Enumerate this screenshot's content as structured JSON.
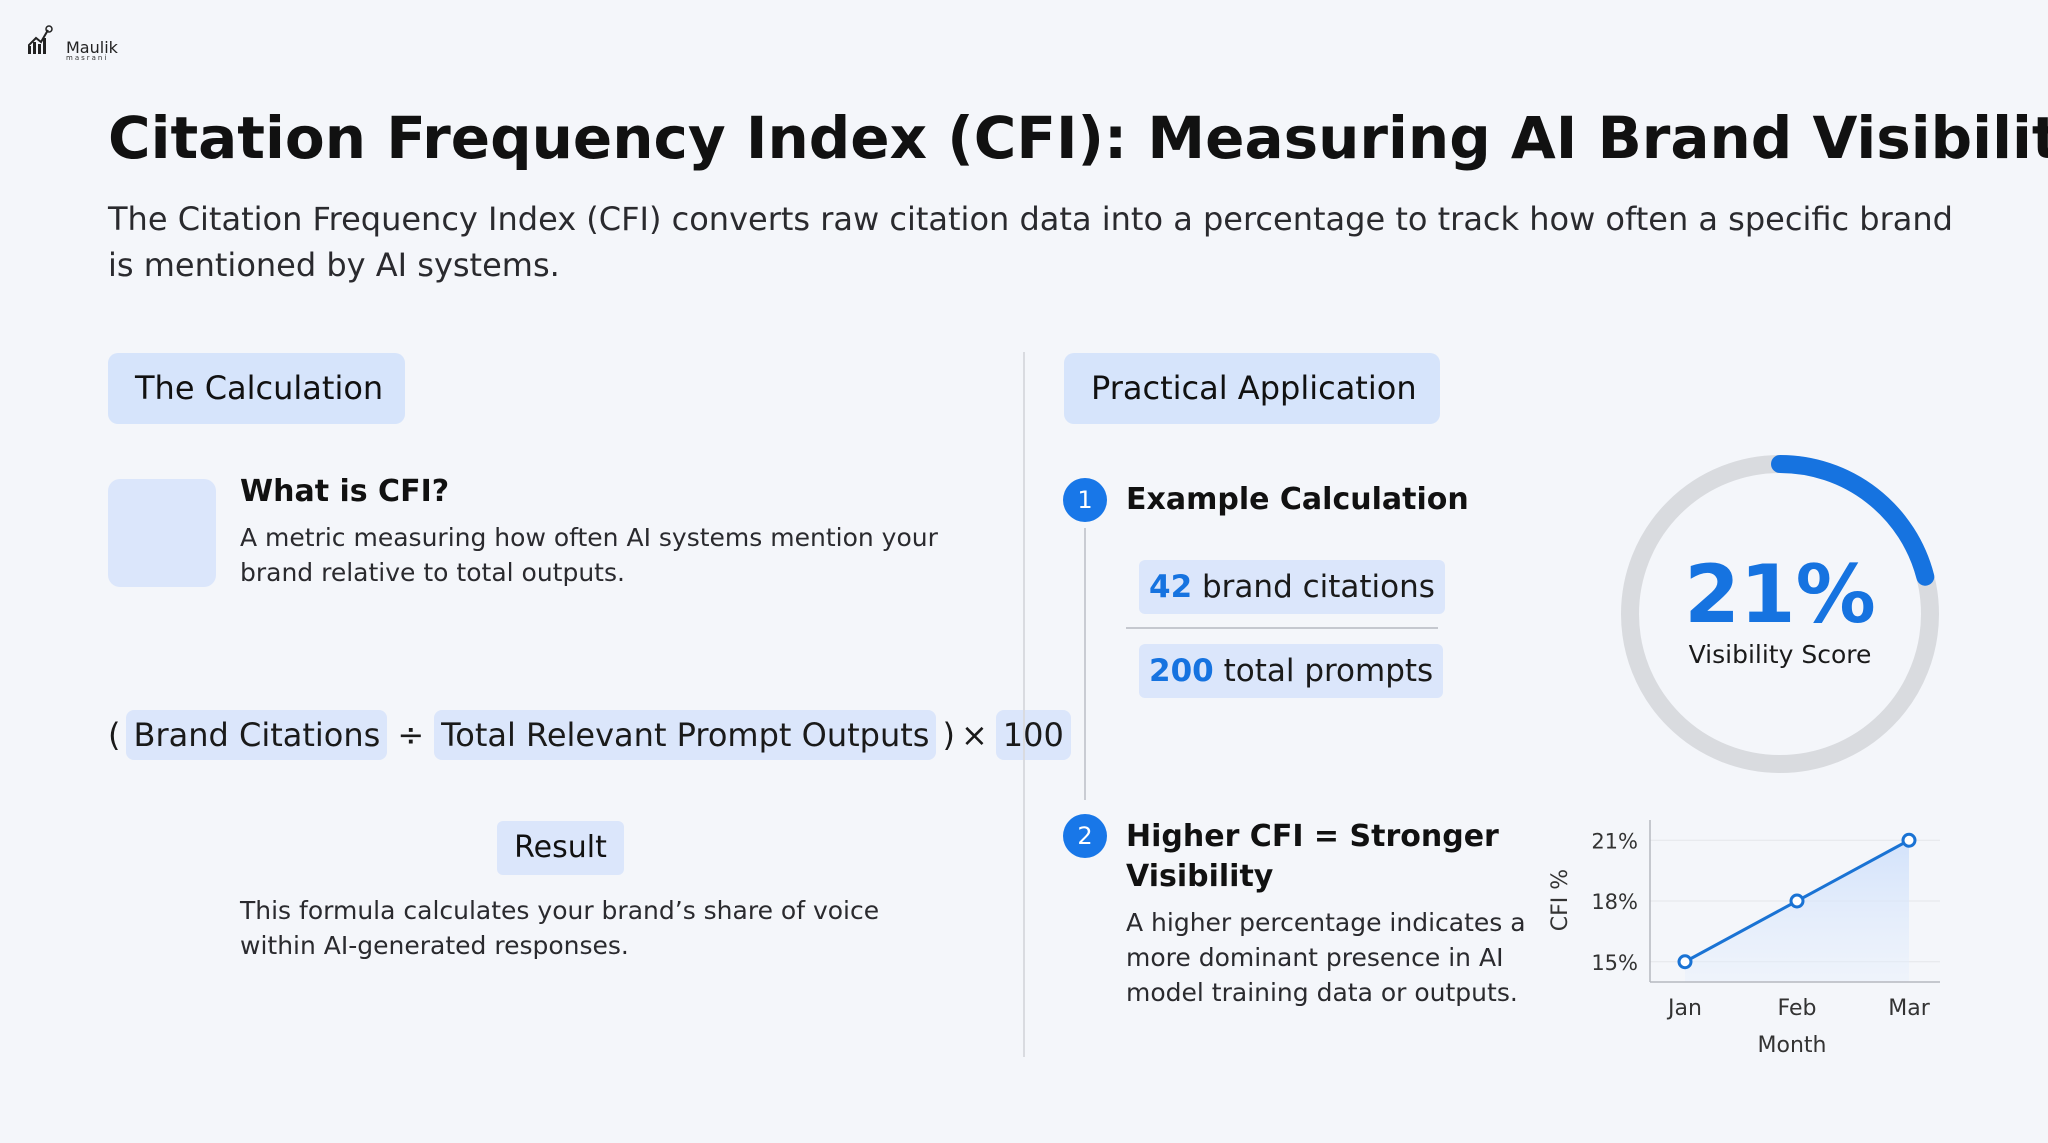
{
  "logo": {
    "name": "Maulik",
    "sub": "masrani"
  },
  "title": "Citation Frequency Index (CFI): Measuring AI Brand Visibility",
  "subtitle": "The Citation Frequency Index (CFI) converts raw citation data into a percentage to track how often a specific brand is mentioned by AI systems.",
  "calculation": {
    "section_label": "The Calculation",
    "what_heading": "What is CFI?",
    "what_desc": "A metric measuring how often AI systems mention your brand relative to total outputs.",
    "formula": {
      "open_paren": "(",
      "term1": "Brand Citations",
      "divide": "÷",
      "term2": "Total Relevant Prompt Outputs",
      "close_paren": ")",
      "times": "×",
      "term3": "100"
    },
    "result_label": "Result",
    "result_desc": "This formula calculates your brand’s share of voice within AI-generated responses."
  },
  "application": {
    "section_label": "Practical Application",
    "step1_number": "1",
    "step1_heading": "Example Calculation",
    "citations_value": "42",
    "citations_label": "brand citations",
    "prompts_value": "200",
    "prompts_label": "total prompts",
    "step2_number": "2",
    "step2_heading": "Higher CFI = Stronger Visibility",
    "step2_desc": "A higher percentage indicates a more dominant presence in AI model training data or outputs.",
    "score_value": "21%",
    "score_label": "Visibility Score",
    "score_fraction": 0.21
  },
  "colors": {
    "accent": "#1673e0",
    "pill": "#dbe6fb",
    "track": "#d9dbdf"
  },
  "chart_data": {
    "type": "line",
    "categories": [
      "Jan",
      "Feb",
      "Mar"
    ],
    "series": [
      {
        "values": [
          15,
          18,
          21
        ]
      }
    ],
    "yticks": [
      "15%",
      "18%",
      "21%"
    ],
    "ylim": [
      14,
      22
    ],
    "xlabel": "Month",
    "ylabel": "CFI %",
    "grid": true
  }
}
